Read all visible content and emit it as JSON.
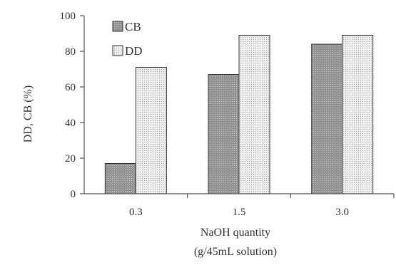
{
  "chart_data": {
    "type": "bar",
    "categories": [
      "0.3",
      "1.5",
      "3.0"
    ],
    "series": [
      {
        "name": "CB",
        "values": [
          17,
          67,
          84
        ],
        "pattern": "dark-dots"
      },
      {
        "name": "DD",
        "values": [
          71,
          89,
          89
        ],
        "pattern": "light-dots"
      }
    ],
    "ylabel": "DD, CB (%)",
    "xlabel_lines": [
      "NaOH quantity",
      "(g/45mL solution)"
    ],
    "ylim": [
      0,
      100
    ],
    "yticks": [
      0,
      20,
      40,
      60,
      80,
      100
    ],
    "grid": false,
    "legend_position": "top-left",
    "colors": {
      "cb_fill": "#9a9a9a",
      "dd_fill": "#ececec",
      "axis": "#555555",
      "bar_stroke": "#333333"
    }
  }
}
